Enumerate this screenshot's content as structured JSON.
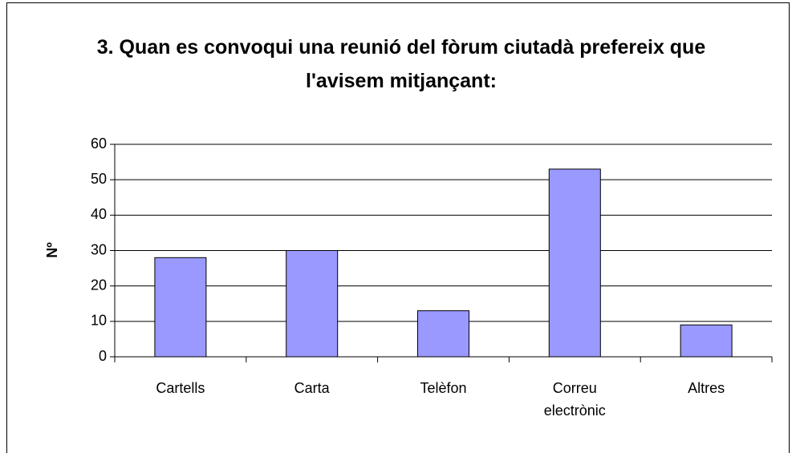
{
  "chart_data": {
    "type": "bar",
    "title": "3. Quan es convoqui una reunió del fòrum ciutadà prefereix que l'avisem mitjançant:",
    "y_label": "Nº",
    "categories": [
      "Cartells",
      "Carta",
      "Telèfon",
      "Correu electrònic",
      "Altres"
    ],
    "values": [
      28,
      30,
      13,
      53,
      9
    ],
    "color": "#9999ff",
    "ylim": [
      0,
      60
    ],
    "yticks": [
      0,
      10,
      20,
      30,
      40,
      50,
      60
    ],
    "grid": true
  }
}
